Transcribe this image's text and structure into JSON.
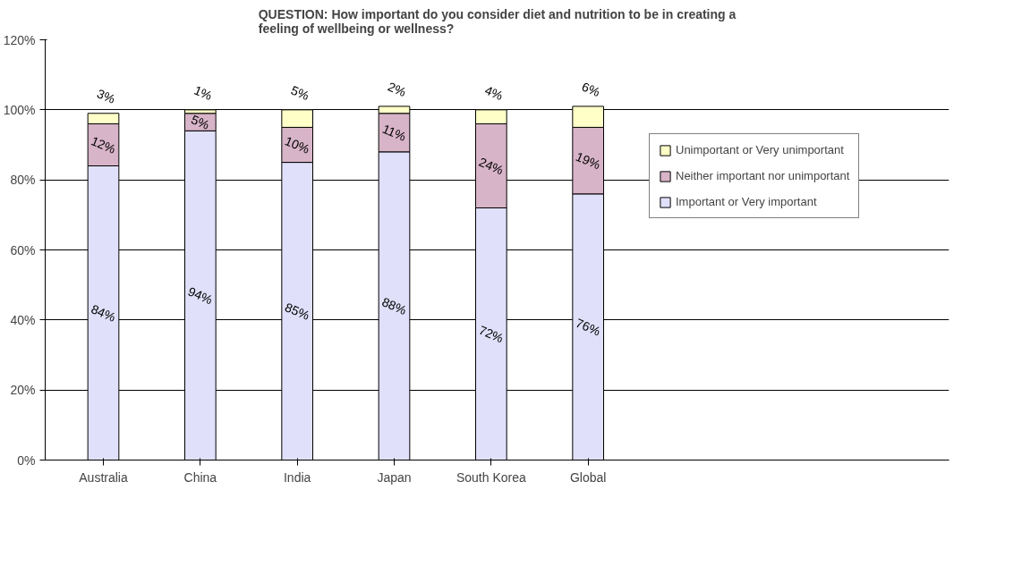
{
  "chart_data": {
    "type": "bar",
    "stacked": true,
    "title": "QUESTION: How important do you consider diet and nutrition to be in creating a feeling of wellbeing or wellness?",
    "categories": [
      "Australia",
      "China",
      "India",
      "Japan",
      "South Korea",
      "Global"
    ],
    "series": [
      {
        "name": "Important or Very important",
        "color": "#e0e0fa",
        "values": [
          84,
          94,
          85,
          88,
          72,
          76
        ],
        "value_labels": [
          "84%",
          "94%",
          "85%",
          "88%",
          "72%",
          "76%"
        ]
      },
      {
        "name": "Neither important nor unimportant",
        "color": "#d8b4c8",
        "values": [
          12,
          5,
          10,
          11,
          24,
          19
        ],
        "value_labels": [
          "12%",
          "5%",
          "10%",
          "11%",
          "24%",
          "19%"
        ]
      },
      {
        "name": "Unimportant or Very unimportant",
        "color": "#ffffc8",
        "values": [
          3,
          1,
          5,
          2,
          4,
          6
        ],
        "value_labels": [
          "3%",
          "1%",
          "5%",
          "2%",
          "4%",
          "6%"
        ]
      }
    ],
    "ylim": [
      0,
      120
    ],
    "yticks": [
      {
        "value": 0,
        "label": "0%"
      },
      {
        "value": 20,
        "label": "20%"
      },
      {
        "value": 40,
        "label": "40%"
      },
      {
        "value": 60,
        "label": "60%"
      },
      {
        "value": 80,
        "label": "80%"
      },
      {
        "value": 100,
        "label": "100%"
      },
      {
        "value": 120,
        "label": "120%"
      }
    ],
    "grid": "y",
    "legend": "right",
    "data_labels": true
  }
}
